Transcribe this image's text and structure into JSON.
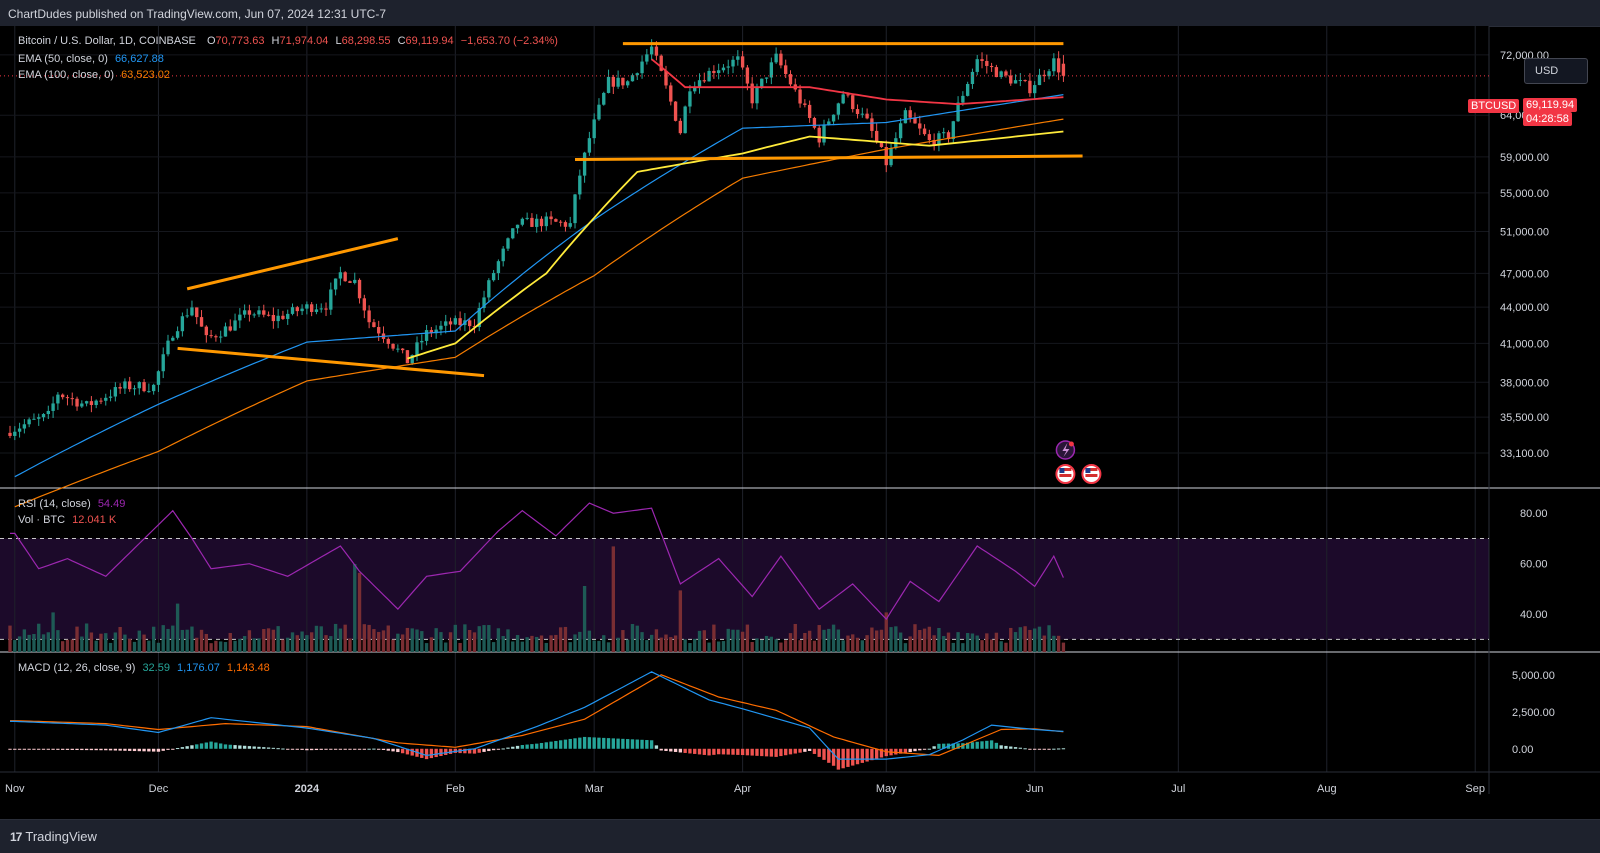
{
  "header": {
    "published": "ChartDudes published on TradingView.com, Jun 07, 2024 12:31 UTC-7"
  },
  "footer": {
    "brand": "TradingView",
    "logo": "17"
  },
  "currency_button": "USD",
  "legend": {
    "symbol": "Bitcoin / U.S. Dollar, 1D, COINBASE",
    "o_label": "O",
    "o_value": "70,773.63",
    "h_label": "H",
    "h_value": "71,974.04",
    "l_label": "L",
    "l_value": "68,298.55",
    "c_label": "C",
    "c_value": "69,119.94",
    "change": "−1,653.70 (−2.34%)",
    "ema50_label": "EMA (50, close, 0)",
    "ema50_value": "66,627.88",
    "ema100_label": "EMA (100, close, 0)",
    "ema100_value": "63,523.02",
    "rsi_label": "RSI (14, close)",
    "rsi_value": "54.49",
    "vol_label": "Vol · BTC",
    "vol_value": "12.041 K",
    "macd_label": "MACD (12, 26, close, 9)",
    "macd_hist": "32.59",
    "macd_value": "1,176.07",
    "macd_signal": "1,143.48"
  },
  "price_tag": {
    "symbol": "BTCUSD",
    "price": "69,119.94",
    "countdown": "04:28:58"
  },
  "colors": {
    "up": "#26a69a",
    "down": "#ef5350",
    "ema50": "#2196f3",
    "ema100": "#f57c00",
    "ma_yellow": "#ffeb3b",
    "ma_red": "#f23645",
    "trendline": "#ff9800",
    "rsi": "#9c27b0",
    "macd": "#2196f3",
    "signal": "#ff6d00"
  },
  "icons": [
    "lightning-event-icon",
    "us-flag-event-icon",
    "us-flag-event-icon"
  ],
  "chart_data": [
    {
      "type": "candlestick",
      "title": "Bitcoin / U.S. Dollar, 1D, COINBASE",
      "y_axis": {
        "scale": "log",
        "ticks": [
          "72,000.00",
          "64,000.00",
          "59,000.00",
          "55,000.00",
          "51,000.00",
          "47,000.00",
          "44,000.00",
          "41,000.00",
          "38,000.00",
          "35,500.00",
          "33,100.00"
        ],
        "tick_values": [
          72000,
          64000,
          59000,
          55000,
          51000,
          47000,
          44000,
          41000,
          38000,
          35500,
          33100
        ],
        "range": [
          31400,
          75000
        ]
      },
      "x_axis": {
        "ticks": [
          "Nov",
          "Dec",
          "2024",
          "Feb",
          "Mar",
          "Apr",
          "May",
          "Jun",
          "Jul",
          "Aug",
          "Sep"
        ],
        "tick_dates": [
          "2023-11-01",
          "2023-12-01",
          "2024-01-01",
          "2024-02-01",
          "2024-03-01",
          "2024-04-01",
          "2024-05-01",
          "2024-06-01",
          "2024-07-01",
          "2024-08-01",
          "2024-09-01"
        ],
        "range": [
          "2023-10-31",
          "2024-09-02"
        ]
      },
      "close_anchors": [
        [
          "2023-10-31",
          34600
        ],
        [
          "2023-11-08",
          35600
        ],
        [
          "2023-11-10",
          37200
        ],
        [
          "2023-11-16",
          36300
        ],
        [
          "2023-11-24",
          37700
        ],
        [
          "2023-11-30",
          37700
        ],
        [
          "2023-12-04",
          41900
        ],
        [
          "2023-12-08",
          44100
        ],
        [
          "2023-12-11",
          41300
        ],
        [
          "2023-12-16",
          42400
        ],
        [
          "2023-12-20",
          43600
        ],
        [
          "2023-12-25",
          43000
        ],
        [
          "2024-01-01",
          44000
        ],
        [
          "2024-01-05",
          44200
        ],
        [
          "2024-01-08",
          47000
        ],
        [
          "2024-01-11",
          46300
        ],
        [
          "2024-01-14",
          42800
        ],
        [
          "2024-01-18",
          41300
        ],
        [
          "2024-01-22",
          39600
        ],
        [
          "2024-01-26",
          41800
        ],
        [
          "2024-01-31",
          42600
        ],
        [
          "2024-02-05",
          42700
        ],
        [
          "2024-02-09",
          47100
        ],
        [
          "2024-02-14",
          51800
        ],
        [
          "2024-02-20",
          52000
        ],
        [
          "2024-02-25",
          51700
        ],
        [
          "2024-02-27",
          57000
        ],
        [
          "2024-02-29",
          61200
        ],
        [
          "2024-03-04",
          68300
        ],
        [
          "2024-03-08",
          68300
        ],
        [
          "2024-03-13",
          73000
        ],
        [
          "2024-03-19",
          62000
        ],
        [
          "2024-03-21",
          67800
        ],
        [
          "2024-03-26",
          70000
        ],
        [
          "2024-03-31",
          71300
        ],
        [
          "2024-04-03",
          66000
        ],
        [
          "2024-04-08",
          71600
        ],
        [
          "2024-04-12",
          67000
        ],
        [
          "2024-04-17",
          61200
        ],
        [
          "2024-04-22",
          66800
        ],
        [
          "2024-04-27",
          63100
        ],
        [
          "2024-05-01",
          58300
        ],
        [
          "2024-05-05",
          64000
        ],
        [
          "2024-05-10",
          60800
        ],
        [
          "2024-05-14",
          61500
        ],
        [
          "2024-05-16",
          65200
        ],
        [
          "2024-05-20",
          71400
        ],
        [
          "2024-05-25",
          69200
        ],
        [
          "2024-05-31",
          67500
        ],
        [
          "2024-06-05",
          71100
        ],
        [
          "2024-06-07",
          69120
        ]
      ],
      "ohlc_last": {
        "open": 70773.63,
        "high": 71974.04,
        "low": 68298.55,
        "close": 69119.94
      },
      "ema50_anchors": [
        [
          "2023-11-01",
          31600
        ],
        [
          "2023-12-01",
          36400
        ],
        [
          "2024-01-01",
          41100
        ],
        [
          "2024-02-01",
          42000
        ],
        [
          "2024-03-01",
          52200
        ],
        [
          "2024-04-01",
          62400
        ],
        [
          "2024-05-01",
          63100
        ],
        [
          "2024-06-07",
          66628
        ]
      ],
      "ema100_anchors": [
        [
          "2023-11-01",
          29800
        ],
        [
          "2023-12-01",
          33200
        ],
        [
          "2024-01-01",
          38100
        ],
        [
          "2024-02-01",
          39900
        ],
        [
          "2024-03-01",
          46800
        ],
        [
          "2024-04-01",
          56600
        ],
        [
          "2024-05-01",
          59900
        ],
        [
          "2024-06-07",
          63523
        ]
      ],
      "yellow_ma_anchors": [
        [
          "2024-01-22",
          39800
        ],
        [
          "2024-02-01",
          41000
        ],
        [
          "2024-02-20",
          47000
        ],
        [
          "2024-02-28",
          51300
        ],
        [
          "2024-03-10",
          57300
        ],
        [
          "2024-04-01",
          59400
        ],
        [
          "2024-04-15",
          61400
        ],
        [
          "2024-05-10",
          60300
        ],
        [
          "2024-06-07",
          62000
        ]
      ],
      "red_ma_anchors": [
        [
          "2024-03-13",
          71400
        ],
        [
          "2024-03-20",
          67600
        ],
        [
          "2024-04-15",
          67600
        ],
        [
          "2024-05-01",
          66000
        ],
        [
          "2024-05-16",
          65400
        ],
        [
          "2024-06-07",
          66300
        ]
      ],
      "trendlines": [
        {
          "from": [
            "2023-12-07",
            45600
          ],
          "to": [
            "2024-01-20",
            50300
          ]
        },
        {
          "from": [
            "2023-12-05",
            40600
          ],
          "to": [
            "2024-02-07",
            38500
          ]
        },
        {
          "from": [
            "2024-03-07",
            73600
          ],
          "to": [
            "2024-06-07",
            73600
          ]
        },
        {
          "from": [
            "2024-02-26",
            58700
          ],
          "to": [
            "2024-06-11",
            59100
          ]
        }
      ],
      "current_price": 69119.94
    },
    {
      "type": "line",
      "title": "RSI (14, close)",
      "y_axis": {
        "ticks": [
          "80.00",
          "60.00",
          "40.00"
        ],
        "tick_values": [
          80,
          60,
          40
        ],
        "range": [
          25,
          90
        ]
      },
      "bands": [
        70,
        30
      ],
      "anchors": [
        [
          "2023-11-01",
          72
        ],
        [
          "2023-11-06",
          58
        ],
        [
          "2023-11-12",
          62
        ],
        [
          "2023-11-20",
          55
        ],
        [
          "2023-12-04",
          81
        ],
        [
          "2023-12-08",
          70
        ],
        [
          "2023-12-12",
          58
        ],
        [
          "2023-12-20",
          60
        ],
        [
          "2023-12-28",
          55
        ],
        [
          "2024-01-08",
          67
        ],
        [
          "2024-01-12",
          57
        ],
        [
          "2024-01-20",
          42
        ],
        [
          "2024-01-26",
          55
        ],
        [
          "2024-02-02",
          57
        ],
        [
          "2024-02-10",
          73
        ],
        [
          "2024-02-15",
          81
        ],
        [
          "2024-02-22",
          71
        ],
        [
          "2024-02-29",
          84
        ],
        [
          "2024-03-05",
          80
        ],
        [
          "2024-03-13",
          82
        ],
        [
          "2024-03-19",
          52
        ],
        [
          "2024-03-27",
          62
        ],
        [
          "2024-04-03",
          47
        ],
        [
          "2024-04-09",
          63
        ],
        [
          "2024-04-17",
          42
        ],
        [
          "2024-04-24",
          52
        ],
        [
          "2024-05-01",
          38
        ],
        [
          "2024-05-06",
          53
        ],
        [
          "2024-05-12",
          45
        ],
        [
          "2024-05-20",
          67
        ],
        [
          "2024-05-28",
          57
        ],
        [
          "2024-06-01",
          51
        ],
        [
          "2024-06-05",
          63
        ],
        [
          "2024-06-07",
          54.49
        ]
      ]
    },
    {
      "type": "bar",
      "title": "Vol · BTC",
      "peaks": [
        [
          "2023-11-09",
          18
        ],
        [
          "2023-12-05",
          22
        ],
        [
          "2024-01-11",
          40
        ],
        [
          "2024-01-12",
          36
        ],
        [
          "2024-02-28",
          30
        ],
        [
          "2024-03-05",
          48
        ],
        [
          "2024-03-19",
          28
        ],
        [
          "2024-05-01",
          18
        ]
      ],
      "last_value": "12.041 K"
    },
    {
      "type": "line",
      "title": "MACD (12, 26, close, 9)",
      "y_axis": {
        "ticks": [
          "5,000.00",
          "2,500.00",
          "0.00"
        ],
        "tick_values": [
          5000,
          2500,
          0
        ],
        "range": [
          -1300,
          6000
        ]
      },
      "macd_anchors": [
        [
          "2023-11-01",
          1850
        ],
        [
          "2023-11-20",
          1600
        ],
        [
          "2023-12-01",
          1100
        ],
        [
          "2023-12-12",
          2100
        ],
        [
          "2024-01-01",
          1400
        ],
        [
          "2024-01-15",
          700
        ],
        [
          "2024-01-26",
          -450
        ],
        [
          "2024-02-05",
          0
        ],
        [
          "2024-02-18",
          1500
        ],
        [
          "2024-02-28",
          2800
        ],
        [
          "2024-03-13",
          5200
        ],
        [
          "2024-03-25",
          3300
        ],
        [
          "2024-04-01",
          2700
        ],
        [
          "2024-04-15",
          1400
        ],
        [
          "2024-04-21",
          -700
        ],
        [
          "2024-05-01",
          -700
        ],
        [
          "2024-05-10",
          -400
        ],
        [
          "2024-05-17",
          600
        ],
        [
          "2024-05-23",
          1600
        ],
        [
          "2024-06-01",
          1300
        ],
        [
          "2024-06-07",
          1176.07
        ]
      ],
      "signal_anchors": [
        [
          "2023-11-01",
          1900
        ],
        [
          "2023-11-20",
          1700
        ],
        [
          "2023-12-01",
          1300
        ],
        [
          "2023-12-15",
          1700
        ],
        [
          "2024-01-01",
          1500
        ],
        [
          "2024-01-20",
          400
        ],
        [
          "2024-02-01",
          100
        ],
        [
          "2024-02-15",
          900
        ],
        [
          "2024-02-28",
          2000
        ],
        [
          "2024-03-15",
          5000
        ],
        [
          "2024-03-27",
          3500
        ],
        [
          "2024-04-08",
          2600
        ],
        [
          "2024-04-20",
          800
        ],
        [
          "2024-05-01",
          -200
        ],
        [
          "2024-05-12",
          -450
        ],
        [
          "2024-05-25",
          1300
        ],
        [
          "2024-06-01",
          1350
        ],
        [
          "2024-06-07",
          1143.48
        ]
      ],
      "histogram_last": 32.59
    }
  ]
}
